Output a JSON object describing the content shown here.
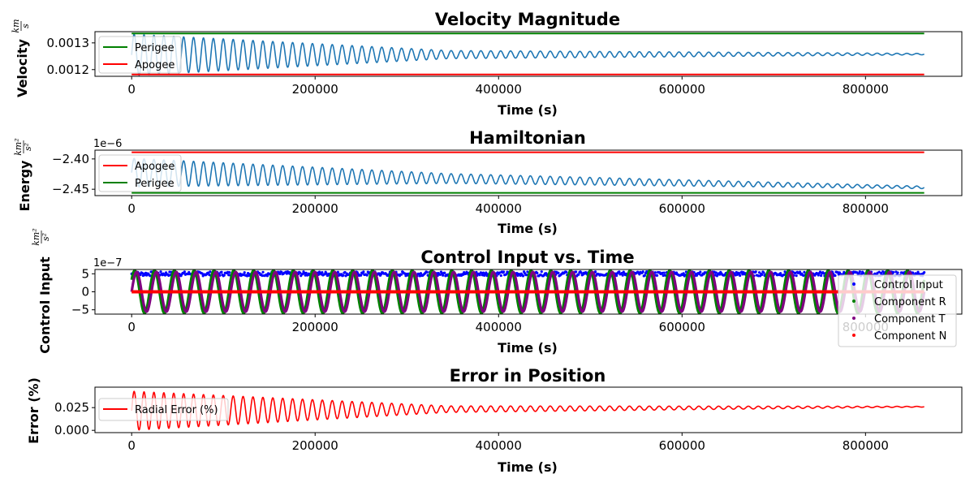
{
  "chart_data": [
    {
      "type": "line",
      "title": "Velocity Magnitude",
      "xlabel": "Time (s)",
      "ylabel": "Velocity",
      "ylabel_unit": {
        "num": "km",
        "den": "s"
      },
      "xlim": [
        -40000,
        905000
      ],
      "ylim": [
        0.001175,
        0.001342
      ],
      "x_ticks": [
        0,
        200000,
        400000,
        600000,
        800000
      ],
      "x_tick_labels": [
        "0",
        "200000",
        "400000",
        "600000",
        "800000"
      ],
      "y_ticks": [
        0.0012,
        0.0013
      ],
      "y_tick_labels": [
        "0.0012",
        "0.0013"
      ],
      "legend": "upper-left",
      "series": [
        {
          "kind": "osc",
          "color": "#1f77b4",
          "x_start": 0,
          "x_end": 864000,
          "period": 10800,
          "center_start": 0.001255,
          "center_end": 0.001258,
          "amp_start": 7.75e-05,
          "amp_mid": 1.5e-05,
          "amp_end": 2.5e-06
        },
        {
          "name": "Perigee",
          "kind": "hline",
          "color": "#008000",
          "y": 0.001335,
          "x_start": 0,
          "x_end": 864000
        },
        {
          "name": "Apogee",
          "kind": "hline",
          "color": "#ff0000",
          "y": 0.001182,
          "x_start": 0,
          "x_end": 864000
        }
      ]
    },
    {
      "type": "line",
      "title": "Hamiltonian",
      "xlabel": "Time (s)",
      "ylabel": "Energy",
      "ylabel_unit": {
        "num": "km²",
        "den": "s²"
      },
      "offset_text": "1e−6",
      "xlim": [
        -40000,
        905000
      ],
      "ylim": [
        -2.4605,
        -2.3855
      ],
      "x_ticks": [
        0,
        200000,
        400000,
        600000,
        800000
      ],
      "x_tick_labels": [
        "0",
        "200000",
        "400000",
        "600000",
        "800000"
      ],
      "y_ticks": [
        -2.4,
        -2.45
      ],
      "y_tick_labels": [
        "−2.40",
        "−2.45"
      ],
      "legend": "upper-left",
      "series": [
        {
          "kind": "osc",
          "color": "#1f77b4",
          "x_start": 0,
          "x_end": 864000,
          "period": 10800,
          "center_start": -2.4225,
          "center_end": -2.447,
          "amp_start": 0.0235,
          "amp_mid": 0.008,
          "amp_end": 0.002
        },
        {
          "name": "Apogee",
          "kind": "hline",
          "color": "#ff0000",
          "y": -2.389,
          "x_start": 0,
          "x_end": 864000
        },
        {
          "name": "Perigee",
          "kind": "hline",
          "color": "#008000",
          "y": -2.456,
          "x_start": 0,
          "x_end": 864000
        }
      ]
    },
    {
      "type": "scatter",
      "title": "Control Input vs. Time",
      "xlabel": "Time (s)",
      "ylabel": "Control Input",
      "ylabel_unit": {
        "num": "km²",
        "den": "s²"
      },
      "offset_text": "1e−7",
      "xlim": [
        -40000,
        905000
      ],
      "ylim": [
        -6.2,
        6.2
      ],
      "x_ticks": [
        0,
        200000,
        400000,
        600000,
        800000
      ],
      "x_tick_labels": [
        "0",
        "200000",
        "400000",
        "600000",
        "800000"
      ],
      "y_ticks": [
        5,
        0,
        -5
      ],
      "y_tick_labels": [
        "5",
        "0",
        "−5"
      ],
      "legend": "lower-right",
      "series": [
        {
          "name": "Control Input",
          "kind": "band",
          "color": "#0000ff",
          "y_low": 4.4,
          "y_high": 5.6,
          "x_start": 0,
          "x_end": 864000
        },
        {
          "name": "Component R",
          "kind": "osc",
          "color": "#008000",
          "x_start": 0,
          "x_end": 864000,
          "period": 21600,
          "amp": 5.9,
          "phase": 0.6
        },
        {
          "name": "Component T",
          "kind": "osc",
          "color": "#800080",
          "x_start": 0,
          "x_end": 864000,
          "period": 21600,
          "amp": 5.5,
          "phase": 0.0
        },
        {
          "name": "Component N",
          "kind": "hline",
          "color": "#ff0000",
          "y": 0,
          "x_start": 0,
          "x_end": 864000
        }
      ]
    },
    {
      "type": "line",
      "title": "Error in Position",
      "xlabel": "Time (s)",
      "ylabel": "Error (%)",
      "xlim": [
        -40000,
        905000
      ],
      "ylim": [
        -0.0025,
        0.0475
      ],
      "x_ticks": [
        0,
        200000,
        400000,
        600000,
        800000
      ],
      "x_tick_labels": [
        "0",
        "200000",
        "400000",
        "600000",
        "800000"
      ],
      "y_ticks": [
        0.025,
        0.0
      ],
      "y_tick_labels": [
        "0.025",
        "0.000"
      ],
      "legend": "upper-left",
      "series": [
        {
          "name": "Radial Error (%)",
          "kind": "osc",
          "color": "#ff0000",
          "x_start": 0,
          "x_end": 864000,
          "period": 10800,
          "center_start": 0.0215,
          "center_end": 0.026,
          "amp_start": 0.0215,
          "amp_mid": 0.0035,
          "amp_end": 0.0004
        }
      ]
    }
  ]
}
